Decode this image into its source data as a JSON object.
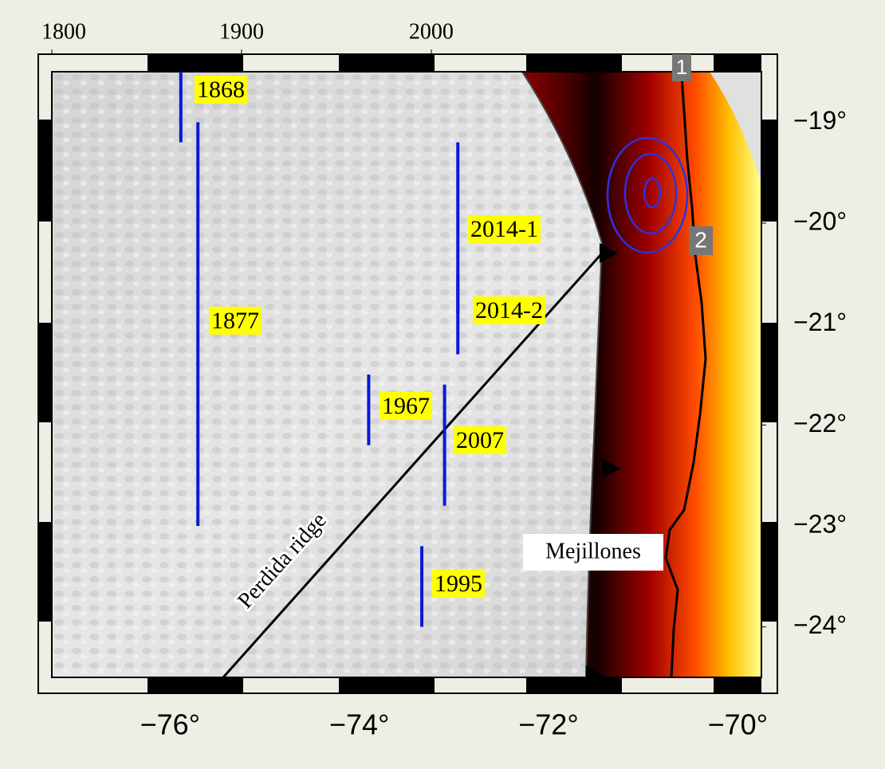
{
  "map": {
    "year_axis": {
      "lim": [
        1800,
        2174
      ],
      "ticks": [
        1800,
        1900,
        2000
      ]
    },
    "lon_axis": {
      "lim": [
        -77.25,
        -69.75
      ],
      "ticks": [
        {
          "value": -76,
          "label": "−76°"
        },
        {
          "value": -74,
          "label": "−74°"
        },
        {
          "value": -72,
          "label": "−72°"
        },
        {
          "value": -70,
          "label": "−70°"
        }
      ]
    },
    "lat_axis": {
      "lim": [
        -24.5,
        -18.5
      ],
      "ticks": [
        {
          "value": -19,
          "label": "−19°"
        },
        {
          "value": -20,
          "label": "−20°"
        },
        {
          "value": -21,
          "label": "−21°"
        },
        {
          "value": -22,
          "label": "−22°"
        },
        {
          "value": -23,
          "label": "−23°"
        },
        {
          "value": -24,
          "label": "−24°"
        }
      ]
    },
    "ruptures": [
      {
        "label": "1868",
        "year": 1868,
        "lat": [
          -18.5,
          -19.2
        ]
      },
      {
        "label": "1877",
        "year": 1877,
        "lat": [
          -19.0,
          -23.0
        ]
      },
      {
        "label": "2014-1",
        "year": 2014,
        "lat": [
          -19.2,
          -20.9
        ]
      },
      {
        "label": "2014-2",
        "year": 2014,
        "lat": [
          -20.5,
          -21.3
        ]
      },
      {
        "label": "1967",
        "year": 1967,
        "lat": [
          -21.5,
          -22.2
        ]
      },
      {
        "label": "2007",
        "year": 2007,
        "lat": [
          -21.6,
          -22.8
        ]
      },
      {
        "label": "1995",
        "year": 1995,
        "lat": [
          -23.2,
          -24.0
        ]
      }
    ],
    "ridge_label": "Perdida ridge",
    "place_label": "Mejillones",
    "markers": [
      "1",
      "2"
    ]
  }
}
